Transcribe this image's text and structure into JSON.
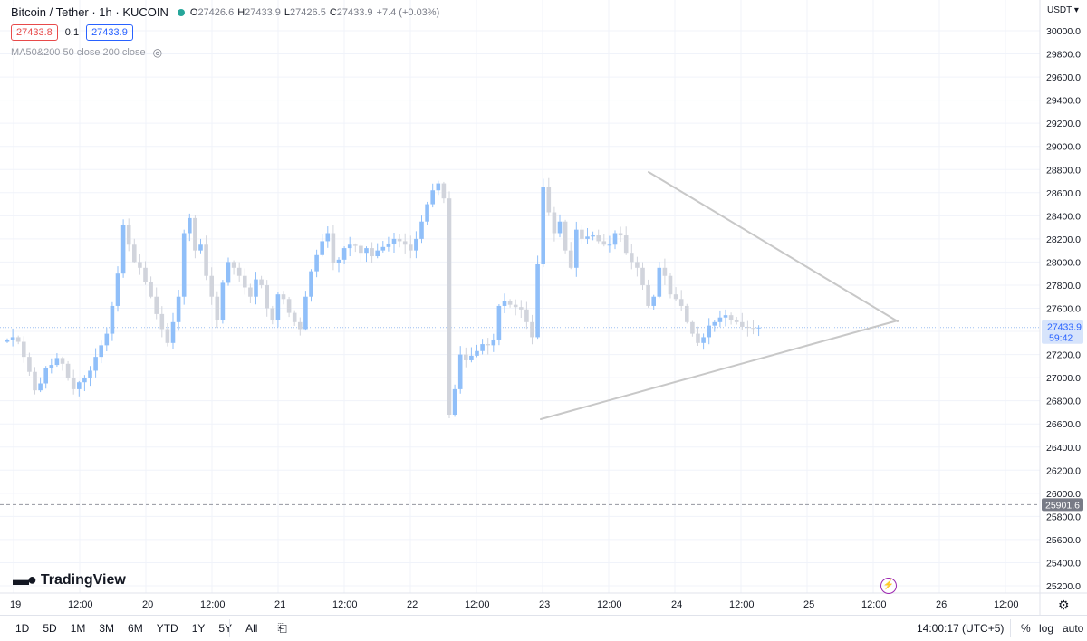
{
  "header": {
    "symbol_title": "Bitcoin / Tether · 1h · KUCOIN",
    "ohlc": {
      "o_label": "O",
      "o": "27426.6",
      "h_label": "H",
      "h": "27433.9",
      "l_label": "L",
      "l": "27426.5",
      "c_label": "C",
      "c": "27433.9",
      "change": "+7.4 (+0.03%)"
    },
    "bid": "27433.8",
    "spread": "0.1",
    "ask": "27433.9",
    "indicator": "MA50&200 50 close 200 close",
    "indicator_icon": "eye-off-icon"
  },
  "currency_label": "USDT ▾",
  "logo_text": "TradingView",
  "bottom_bar": {
    "ranges": [
      "1D",
      "5D",
      "1M",
      "3M",
      "6M",
      "YTD",
      "1Y",
      "5Y",
      "All"
    ],
    "compare_icon": "date-range-icon",
    "clock": "14:00:17 (UTC+5)",
    "percent_label": "%",
    "log_label": "log",
    "auto_label": "auto"
  },
  "colors": {
    "up_candle": "#90bff9",
    "down_candle": "#d1d4dc",
    "trendline": "#c8c8c8",
    "grid": "#f0f3fa",
    "last_price_label_bg": "#d7e4fb",
    "level_label_bg": "#787b86"
  },
  "chart_data": {
    "type": "candlestick",
    "timeframe": "1h",
    "x_ticks": [
      "19",
      "12:00",
      "20",
      "12:00",
      "21",
      "12:00",
      "22",
      "12:00",
      "23",
      "12:00",
      "24",
      "12:00",
      "25",
      "12:00",
      "26",
      "12:00"
    ],
    "y_ticks": [
      25200.0,
      25400.0,
      25600.0,
      25800.0,
      26000.0,
      26200.0,
      26400.0,
      26600.0,
      26800.0,
      27000.0,
      27200.0,
      27400.0,
      27600.0,
      27800.0,
      28000.0,
      28200.0,
      28400.0,
      28600.0,
      28800.0,
      29000.0,
      29200.0,
      29400.0,
      29600.0,
      29800.0,
      30000.0
    ],
    "y_tick_labels": [
      "25200.0",
      "25400.0",
      "25600.0",
      "25800.0",
      "26000.0",
      "26200.0",
      "26400.0",
      "26600.0",
      "26800.0",
      "27000.0",
      "27200.0",
      "27400.0",
      "27600.0",
      "27800.0",
      "28000.0",
      "28200.0",
      "28400.0",
      "28600.0",
      "28800.0",
      "29000.0",
      "29200.0",
      "29400.0",
      "29600.0",
      "29800.0",
      "30000.0"
    ],
    "ylim": [
      25100,
      30100
    ],
    "last_price": {
      "value": 27433.9,
      "label": "27433.9",
      "countdown": "59:42"
    },
    "level_line": {
      "value": 25901.6,
      "label": "25901.6"
    },
    "candles_hourly_closes": [
      27330,
      27350,
      27310,
      27180,
      27050,
      26890,
      26950,
      27080,
      27110,
      27170,
      27120,
      27000,
      26900,
      26960,
      27000,
      27060,
      27180,
      27280,
      27380,
      27620,
      27900,
      28320,
      28150,
      28000,
      27950,
      27830,
      27700,
      27550,
      27420,
      27300,
      27480,
      27700,
      28250,
      28380,
      28100,
      28150,
      27880,
      27700,
      27500,
      27820,
      28000,
      27950,
      27880,
      27780,
      27700,
      27850,
      27800,
      27600,
      27500,
      27720,
      27680,
      27560,
      27480,
      27420,
      27700,
      27920,
      28060,
      28180,
      28250,
      27990,
      28020,
      28120,
      28150,
      28140,
      28080,
      28120,
      28050,
      28100,
      28130,
      28160,
      28200,
      28180,
      28150,
      28100,
      28200,
      28350,
      28500,
      28620,
      28680,
      28550,
      26680,
      26900,
      27200,
      27150,
      27190,
      27230,
      27290,
      27280,
      27330,
      27620,
      27660,
      27630,
      27610,
      27590,
      27480,
      27350,
      27980,
      28650,
      28430,
      28250,
      28350,
      28100,
      27950,
      28280,
      28200,
      28220,
      28230,
      28180,
      28150,
      28150,
      28250,
      28230,
      28080,
      28000,
      27950,
      27800,
      27620,
      27700,
      27950,
      27880,
      27720,
      27680,
      27620,
      27480,
      27380,
      27300,
      27350,
      27450,
      27480,
      27520,
      27540,
      27500,
      27480,
      27440,
      27430,
      27426.6,
      27433.9
    ],
    "trendlines": [
      {
        "name": "",
        "from": {
          "x": "2023-03-23 00:00",
          "y": 26610
        },
        "to": {
          "x": "2023-03-25 04:00",
          "y": 27440
        }
      },
      {
        "name": "",
        "from": {
          "x": "2023-03-23 17:00",
          "y": 28770
        },
        "to": {
          "x": "2023-03-25 04:00",
          "y": 27450
        }
      }
    ],
    "grid": true,
    "legend": "top-left"
  }
}
